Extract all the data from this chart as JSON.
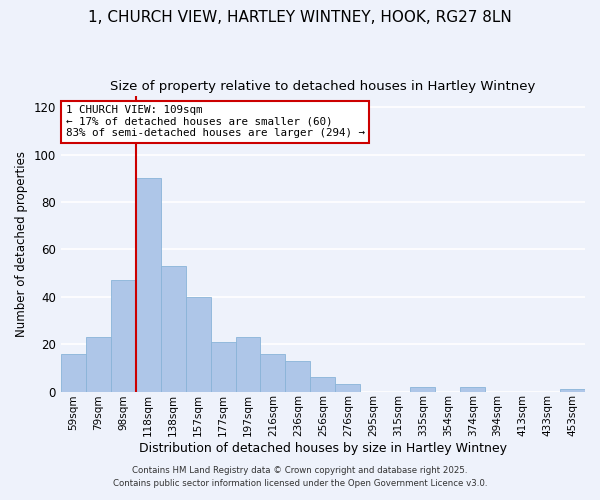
{
  "title": "1, CHURCH VIEW, HARTLEY WINTNEY, HOOK, RG27 8LN",
  "subtitle": "Size of property relative to detached houses in Hartley Wintney",
  "xlabel": "Distribution of detached houses by size in Hartley Wintney",
  "ylabel": "Number of detached properties",
  "bar_labels": [
    "59sqm",
    "79sqm",
    "98sqm",
    "118sqm",
    "138sqm",
    "157sqm",
    "177sqm",
    "197sqm",
    "216sqm",
    "236sqm",
    "256sqm",
    "276sqm",
    "295sqm",
    "315sqm",
    "335sqm",
    "354sqm",
    "374sqm",
    "394sqm",
    "413sqm",
    "433sqm",
    "453sqm"
  ],
  "bar_values": [
    16,
    23,
    47,
    90,
    53,
    40,
    21,
    23,
    16,
    13,
    6,
    3,
    0,
    0,
    2,
    0,
    2,
    0,
    0,
    0,
    1
  ],
  "bar_color": "#aec6e8",
  "bar_edge_color": "#8ab4d8",
  "ylim": [
    0,
    125
  ],
  "yticks": [
    0,
    20,
    40,
    60,
    80,
    100,
    120
  ],
  "vline_color": "#cc0000",
  "annotation_title": "1 CHURCH VIEW: 109sqm",
  "annotation_line1": "← 17% of detached houses are smaller (60)",
  "annotation_line2": "83% of semi-detached houses are larger (294) →",
  "footer1": "Contains HM Land Registry data © Crown copyright and database right 2025.",
  "footer2": "Contains public sector information licensed under the Open Government Licence v3.0.",
  "background_color": "#eef2fb",
  "plot_background": "#eef2fb",
  "grid_color": "#ffffff",
  "title_fontsize": 11,
  "subtitle_fontsize": 9.5,
  "ylabel_fontsize": 8.5,
  "xlabel_fontsize": 9
}
